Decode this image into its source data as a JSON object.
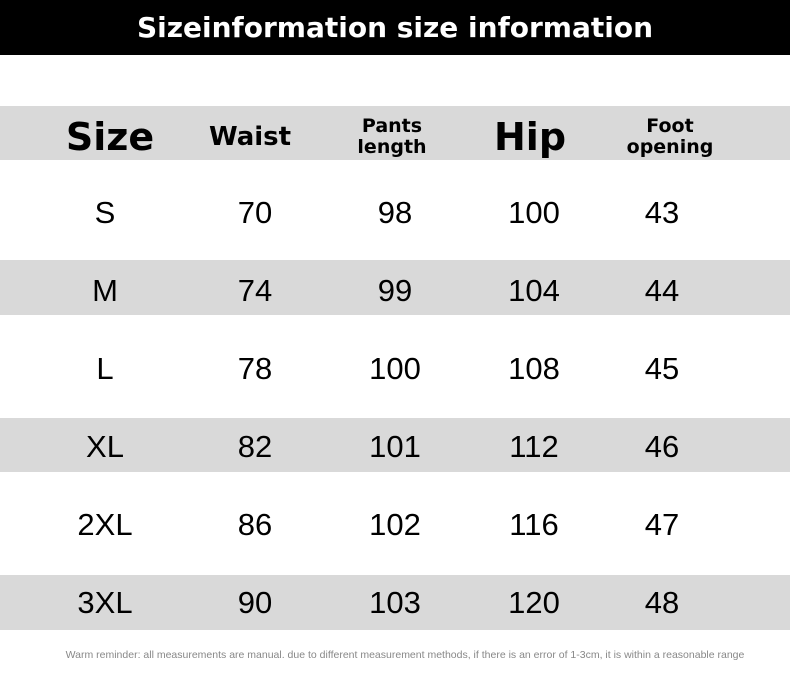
{
  "title": "Sizeinformation size information",
  "table": {
    "headers": [
      "Size",
      "Waist",
      "Pants length",
      "Hip",
      "Foot opening"
    ],
    "rows": [
      [
        "S",
        "70",
        "98",
        "100",
        "43"
      ],
      [
        "M",
        "74",
        "99",
        "104",
        "44"
      ],
      [
        "L",
        "78",
        "100",
        "108",
        "45"
      ],
      [
        "XL",
        "82",
        "101",
        "112",
        "46"
      ],
      [
        "2XL",
        "86",
        "102",
        "116",
        "47"
      ],
      [
        "3XL",
        "90",
        "103",
        "120",
        "48"
      ]
    ]
  },
  "note": "Warm reminder: all measurements are manual. due to different measurement methods, if there is an error of 1-3cm, it is within a reasonable range",
  "colors": {
    "banner": "#000000",
    "band": "#d9d9d9",
    "note": "#888888"
  }
}
